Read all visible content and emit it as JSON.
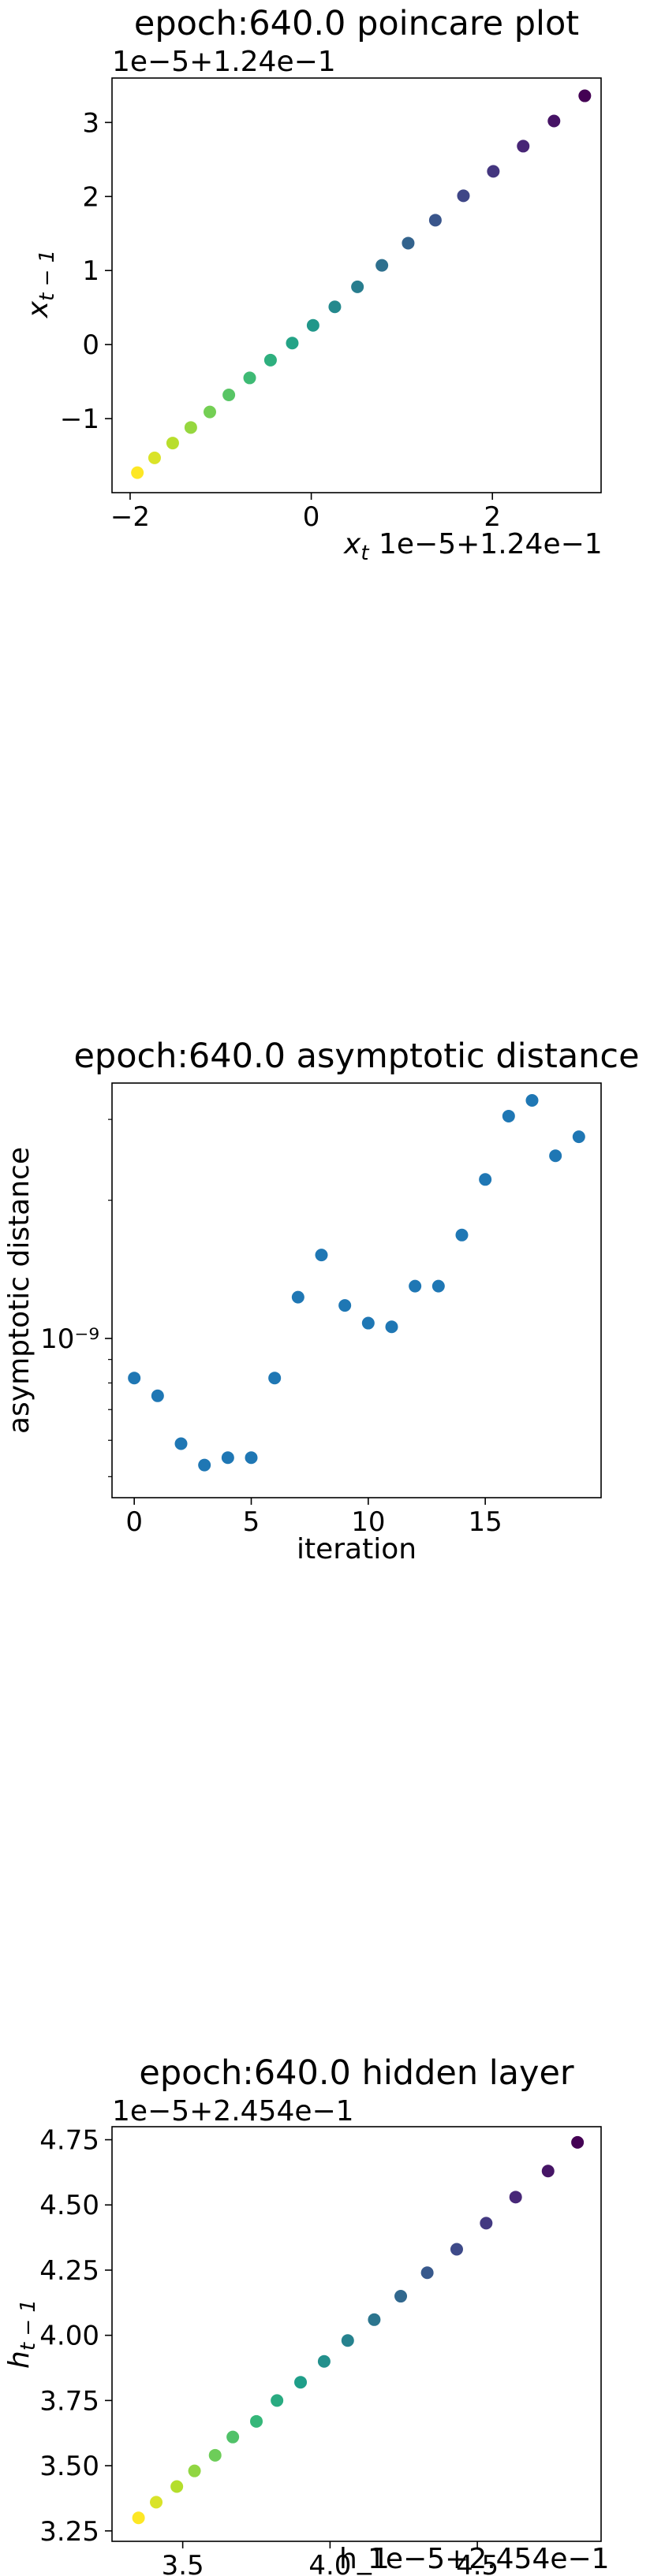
{
  "chart_data": [
    {
      "type": "scatter",
      "title": "epoch:640.0 poincare plot",
      "xlabel": "x_t",
      "ylabel": "x_{t-1}",
      "x_offset_label": "1e−5+1.24e−1",
      "y_offset_label": "1e−5+1.24e−1",
      "x_ticks": [
        {
          "v": -2,
          "label": "−2"
        },
        {
          "v": 0,
          "label": "0"
        },
        {
          "v": 2,
          "label": "2"
        }
      ],
      "y_ticks": [
        {
          "v": -1,
          "label": "−1"
        },
        {
          "v": 0,
          "label": "0"
        },
        {
          "v": 1,
          "label": "1"
        },
        {
          "v": 2,
          "label": "2"
        },
        {
          "v": 3,
          "label": "3"
        }
      ],
      "xlim": [
        -2.2,
        3.2
      ],
      "ylim": [
        -2.0,
        3.6
      ],
      "colormap": "viridis (reversed along sequence)",
      "grid": false,
      "points": [
        {
          "x": 3.02,
          "y": 3.36
        },
        {
          "x": 2.68,
          "y": 3.02
        },
        {
          "x": 2.34,
          "y": 2.68
        },
        {
          "x": 2.01,
          "y": 2.34
        },
        {
          "x": 1.68,
          "y": 2.01
        },
        {
          "x": 1.37,
          "y": 1.68
        },
        {
          "x": 1.07,
          "y": 1.37
        },
        {
          "x": 0.78,
          "y": 1.07
        },
        {
          "x": 0.51,
          "y": 0.78
        },
        {
          "x": 0.26,
          "y": 0.51
        },
        {
          "x": 0.02,
          "y": 0.26
        },
        {
          "x": -0.21,
          "y": 0.02
        },
        {
          "x": -0.45,
          "y": -0.21
        },
        {
          "x": -0.68,
          "y": -0.45
        },
        {
          "x": -0.91,
          "y": -0.68
        },
        {
          "x": -1.12,
          "y": -0.91
        },
        {
          "x": -1.33,
          "y": -1.12
        },
        {
          "x": -1.53,
          "y": -1.33
        },
        {
          "x": -1.73,
          "y": -1.53
        },
        {
          "x": -1.92,
          "y": -1.73
        }
      ]
    },
    {
      "type": "scatter",
      "title": "epoch:640.0 asymptotic distance",
      "xlabel": "iteration",
      "ylabel": "asymptotic distance",
      "y_scale": "log",
      "x_ticks": [
        {
          "v": 0,
          "label": "0"
        },
        {
          "v": 5,
          "label": "5"
        },
        {
          "v": 10,
          "label": "10"
        },
        {
          "v": 15,
          "label": "15"
        }
      ],
      "y_ticks": [
        {
          "v": 1e-09,
          "label": "10⁻⁹"
        }
      ],
      "y_minor_ticks": [
        5e-10,
        6e-10,
        7e-10,
        8e-10,
        9e-10,
        2e-09,
        3e-09
      ],
      "xlim": [
        -0.95,
        19.95
      ],
      "ylim": [
        4.5e-10,
        3.6e-09
      ],
      "color": "#1f77b4",
      "grid": false,
      "x": [
        0,
        1,
        2,
        3,
        4,
        5,
        6,
        7,
        8,
        9,
        10,
        11,
        12,
        13,
        14,
        15,
        16,
        17,
        18,
        19
      ],
      "y": [
        8.2e-10,
        7.5e-10,
        5.9e-10,
        5.3e-10,
        5.5e-10,
        5.5e-10,
        8.2e-10,
        1.23e-09,
        1.52e-09,
        1.18e-09,
        1.08e-09,
        1.06e-09,
        1.3e-09,
        1.3e-09,
        1.68e-09,
        2.22e-09,
        3.05e-09,
        3.3e-09,
        2.5e-09,
        2.75e-09
      ]
    },
    {
      "type": "scatter",
      "title": "epoch:640.0 hidden layer",
      "xlabel": "h_1",
      "ylabel": "h_{t-1}",
      "x_offset_label": "1e−5+2.454e−1",
      "y_offset_label": "1e−5+2.454e−1",
      "x_ticks": [
        {
          "v": 3.5,
          "label": "3.5"
        },
        {
          "v": 4.0,
          "label": "4.0"
        },
        {
          "v": 4.5,
          "label": "4.5"
        }
      ],
      "y_ticks": [
        {
          "v": 3.25,
          "label": "3.25"
        },
        {
          "v": 3.5,
          "label": "3.50"
        },
        {
          "v": 3.75,
          "label": "3.75"
        },
        {
          "v": 4.0,
          "label": "4.00"
        },
        {
          "v": 4.25,
          "label": "4.25"
        },
        {
          "v": 4.5,
          "label": "4.50"
        },
        {
          "v": 4.75,
          "label": "4.75"
        }
      ],
      "xlim": [
        3.26,
        4.92
      ],
      "ylim": [
        3.21,
        4.8
      ],
      "colormap": "viridis (reversed along sequence)",
      "grid": false,
      "points": [
        {
          "x": 4.84,
          "y": 4.74
        },
        {
          "x": 4.74,
          "y": 4.63
        },
        {
          "x": 4.63,
          "y": 4.53
        },
        {
          "x": 4.53,
          "y": 4.43
        },
        {
          "x": 4.43,
          "y": 4.33
        },
        {
          "x": 4.33,
          "y": 4.24
        },
        {
          "x": 4.24,
          "y": 4.15
        },
        {
          "x": 4.15,
          "y": 4.06
        },
        {
          "x": 4.06,
          "y": 3.98
        },
        {
          "x": 3.98,
          "y": 3.9
        },
        {
          "x": 3.9,
          "y": 3.82
        },
        {
          "x": 3.82,
          "y": 3.75
        },
        {
          "x": 3.75,
          "y": 3.67
        },
        {
          "x": 3.67,
          "y": 3.61
        },
        {
          "x": 3.61,
          "y": 3.54
        },
        {
          "x": 3.54,
          "y": 3.48
        },
        {
          "x": 3.48,
          "y": 3.42
        },
        {
          "x": 3.41,
          "y": 3.36
        },
        {
          "x": 3.35,
          "y": 3.3
        }
      ]
    }
  ]
}
